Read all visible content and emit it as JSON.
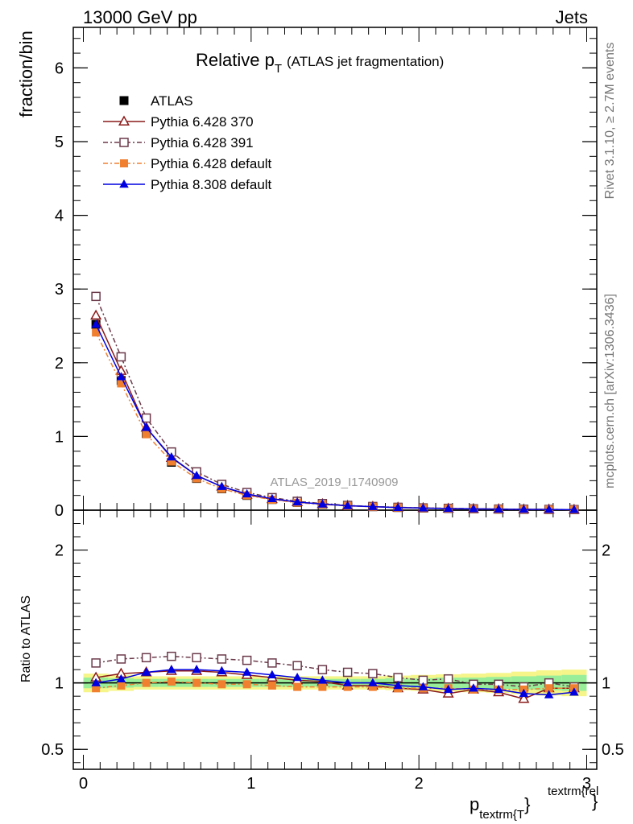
{
  "header": {
    "left": "13000 GeV pp",
    "right": "Jets"
  },
  "side": {
    "rivet": "Rivet 3.1.10, ≥ 2.7M events",
    "mcplots": "mcplots.cern.ch [arXiv:1306.3436]"
  },
  "chart_data": [
    {
      "type": "line",
      "title_main": "Relative p",
      "title_sub": "T",
      "title_rest": "(ATLAS jet fragmentation)",
      "ylabel": "fraction/bin",
      "watermark": "ATLAS_2019_I1740909",
      "ylim": [
        0,
        6.55
      ],
      "xlim": [
        -0.06,
        3.06
      ],
      "yticks": [
        0,
        1,
        2,
        3,
        4,
        5,
        6
      ],
      "x": [
        0.075,
        0.225,
        0.375,
        0.525,
        0.675,
        0.825,
        0.975,
        1.125,
        1.275,
        1.425,
        1.575,
        1.725,
        1.875,
        2.025,
        2.175,
        2.325,
        2.475,
        2.625,
        2.775,
        2.925
      ],
      "legend_position": "top-left",
      "series": [
        {
          "name": "ATLAS",
          "color": "#000000",
          "marker": "filled-square",
          "values": [
            2.52,
            1.76,
            1.04,
            0.65,
            0.43,
            0.29,
            0.2,
            0.145,
            0.105,
            0.08,
            0.06,
            0.048,
            0.037,
            0.03,
            0.024,
            0.019,
            0.015,
            0.012,
            0.01,
            0.008
          ]
        },
        {
          "name": "Pythia 6.428 370",
          "color": "#8b1a1a",
          "marker": "open-triangle",
          "values": [
            2.64,
            1.89,
            1.12,
            0.71,
            0.47,
            0.32,
            0.21,
            0.15,
            0.11,
            0.083,
            0.061,
            0.048,
            0.036,
            0.029,
            0.022,
            0.018,
            0.014,
            0.011,
            0.009,
            0.007
          ]
        },
        {
          "name": "Pythia 6.428 391",
          "color": "#6b3a4a",
          "marker": "open-square",
          "values": [
            2.9,
            2.08,
            1.25,
            0.79,
            0.52,
            0.35,
            0.24,
            0.17,
            0.12,
            0.09,
            0.065,
            0.05,
            0.039,
            0.031,
            0.025,
            0.019,
            0.015,
            0.012,
            0.01,
            0.008
          ]
        },
        {
          "name": "Pythia 6.428 default",
          "color": "#f08030",
          "marker": "filled-square",
          "values": [
            2.41,
            1.72,
            1.03,
            0.66,
            0.43,
            0.29,
            0.2,
            0.142,
            0.102,
            0.078,
            0.058,
            0.047,
            0.036,
            0.029,
            0.023,
            0.018,
            0.014,
            0.011,
            0.009,
            0.007
          ]
        },
        {
          "name": "Pythia 8.308 default",
          "color": "#0000e0",
          "marker": "filled-triangle",
          "values": [
            2.52,
            1.81,
            1.12,
            0.72,
            0.47,
            0.32,
            0.22,
            0.155,
            0.11,
            0.082,
            0.06,
            0.048,
            0.036,
            0.029,
            0.022,
            0.018,
            0.014,
            0.011,
            0.009,
            0.007
          ]
        }
      ]
    },
    {
      "type": "line",
      "ylabel": "Ratio to ATLAS",
      "xlabel_main": "p",
      "xlabel_sub": "textrm{T",
      "xlabel_sup": "textrm{rel",
      "xlabel_close": "}",
      "ylim": [
        0.35,
        2.3
      ],
      "xlim": [
        -0.06,
        3.06
      ],
      "xticks": [
        0,
        1,
        2,
        3
      ],
      "ytick_labels": [
        {
          "v": 0.5,
          "t": "0.5"
        },
        {
          "v": 1,
          "t": "1"
        },
        {
          "v": 2,
          "t": "2"
        }
      ],
      "x": [
        0.075,
        0.225,
        0.375,
        0.525,
        0.675,
        0.825,
        0.975,
        1.125,
        1.275,
        1.425,
        1.575,
        1.725,
        1.875,
        2.025,
        2.175,
        2.325,
        2.475,
        2.625,
        2.775,
        2.925
      ],
      "band_inner": [
        0.04,
        0.035,
        0.03,
        0.03,
        0.03,
        0.03,
        0.03,
        0.03,
        0.03,
        0.03,
        0.03,
        0.03,
        0.035,
        0.035,
        0.04,
        0.04,
        0.045,
        0.05,
        0.055,
        0.06
      ],
      "band_outer": [
        0.07,
        0.06,
        0.05,
        0.05,
        0.05,
        0.05,
        0.05,
        0.05,
        0.05,
        0.05,
        0.05,
        0.05,
        0.055,
        0.06,
        0.065,
        0.07,
        0.075,
        0.085,
        0.095,
        0.1
      ],
      "series": [
        {
          "name": "Pythia 6.428 370",
          "color": "#8b1a1a",
          "marker": "open-triangle",
          "values": [
            1.04,
            1.07,
            1.08,
            1.09,
            1.09,
            1.08,
            1.06,
            1.04,
            1.02,
            1.01,
            0.98,
            0.98,
            0.96,
            0.95,
            0.92,
            0.95,
            0.93,
            0.88,
            0.96,
            0.96
          ]
        },
        {
          "name": "Pythia 6.428 391",
          "color": "#6b3a4a",
          "marker": "open-square",
          "values": [
            1.15,
            1.18,
            1.19,
            1.2,
            1.19,
            1.18,
            1.17,
            1.15,
            1.13,
            1.1,
            1.08,
            1.07,
            1.04,
            1.02,
            1.03,
            0.99,
            0.99,
            0.97,
            1.0,
            0.97
          ]
        },
        {
          "name": "Pythia 6.428 default",
          "color": "#f08030",
          "marker": "filled-square",
          "values": [
            0.96,
            0.98,
            1.0,
            1.01,
            1.0,
            0.99,
            0.99,
            0.98,
            0.97,
            0.97,
            0.97,
            0.97,
            0.96,
            0.96,
            0.96,
            0.95,
            0.95,
            0.95,
            0.96,
            0.96
          ]
        },
        {
          "name": "Pythia 8.308 default",
          "color": "#0000e0",
          "marker": "filled-triangle",
          "values": [
            1.0,
            1.03,
            1.08,
            1.1,
            1.1,
            1.09,
            1.08,
            1.06,
            1.04,
            1.02,
            1.0,
            1.0,
            0.98,
            0.97,
            0.95,
            0.96,
            0.95,
            0.92,
            0.91,
            0.93
          ]
        }
      ]
    }
  ]
}
